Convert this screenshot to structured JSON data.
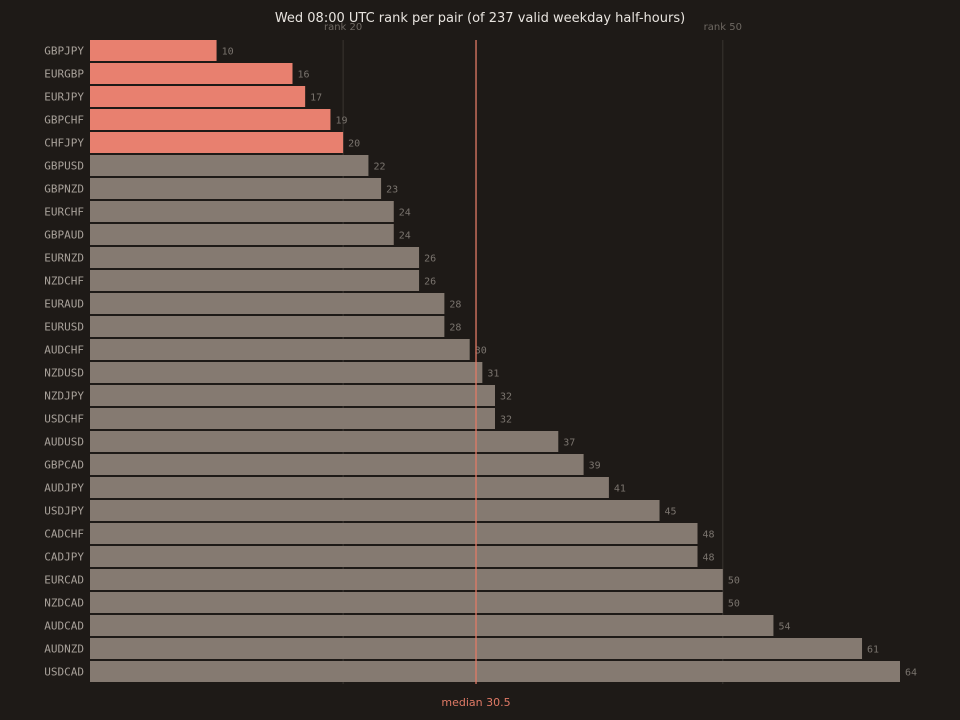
{
  "colors": {
    "background": "#1e1a17",
    "bar": "#857a71",
    "highlight": "#e8806f",
    "median": "#e07a66",
    "ref_line": "#3a3530"
  },
  "chart_data": {
    "type": "bar",
    "orientation": "horizontal",
    "title": "Wed 08:00 UTC rank per pair (of 237 valid weekday half-hours)",
    "categories": [
      "GBPJPY",
      "EURGBP",
      "EURJPY",
      "GBPCHF",
      "CHFJPY",
      "GBPUSD",
      "GBPNZD",
      "EURCHF",
      "GBPAUD",
      "EURNZD",
      "NZDCHF",
      "EURAUD",
      "EURUSD",
      "AUDCHF",
      "NZDUSD",
      "NZDJPY",
      "USDCHF",
      "AUDUSD",
      "GBPCAD",
      "AUDJPY",
      "USDJPY",
      "CADCHF",
      "CADJPY",
      "EURCAD",
      "NZDCAD",
      "AUDCAD",
      "AUDNZD",
      "USDCAD"
    ],
    "values": [
      10,
      16,
      17,
      19,
      20,
      22,
      23,
      24,
      24,
      26,
      26,
      28,
      28,
      30,
      31,
      32,
      32,
      37,
      39,
      41,
      45,
      48,
      48,
      50,
      50,
      54,
      61,
      64
    ],
    "highlighted": [
      "GBPJPY",
      "EURGBP",
      "EURJPY",
      "GBPCHF",
      "CHFJPY"
    ],
    "xlim": [
      0,
      64
    ],
    "reference_lines": [
      {
        "value": 20,
        "label": "rank 20"
      },
      {
        "value": 50,
        "label": "rank 50"
      }
    ],
    "median": {
      "value": 30.5,
      "label": "median 30.5"
    },
    "grid": false,
    "legend": "none"
  }
}
